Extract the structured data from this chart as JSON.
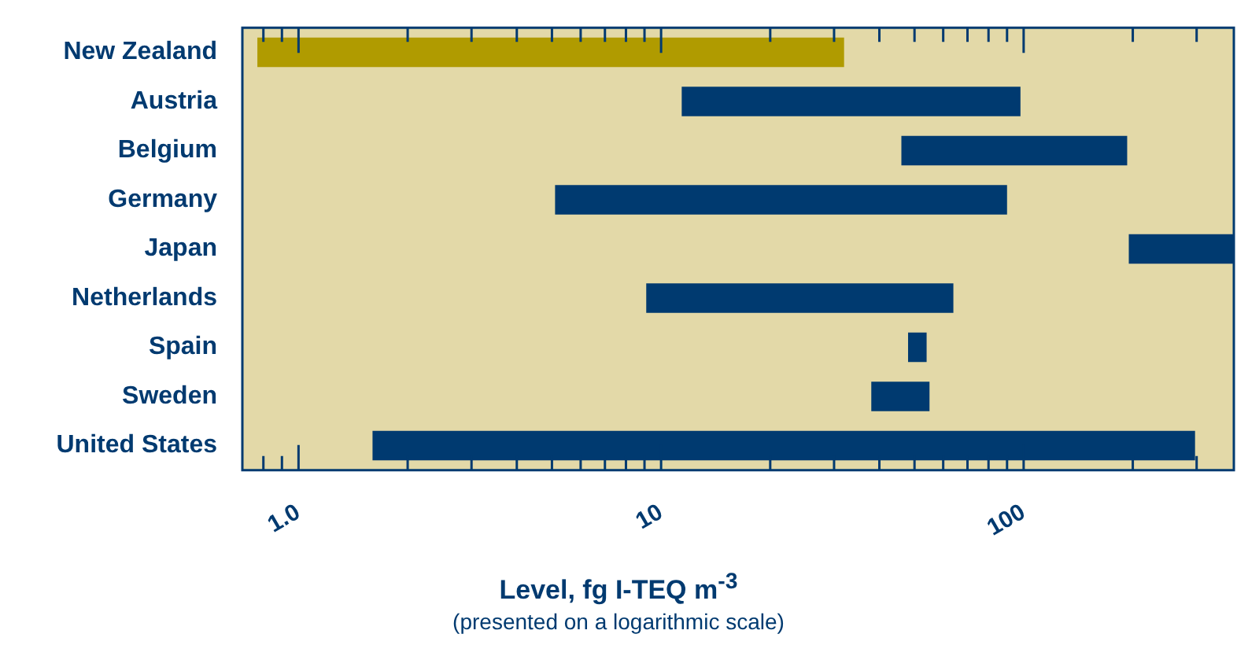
{
  "chart_data": {
    "type": "bar",
    "orientation": "horizontal",
    "log": "x",
    "xlabel": "Level, fg I-TEQ m$^{-3}$",
    "annotations": [
      "(presented on a logarithmic scale)"
    ],
    "categories": [
      "New Zealand",
      "Austria",
      "Belgium",
      "Germany",
      "Japan",
      "Netherlands",
      "Spain",
      "Sweden",
      "United States"
    ],
    "base": [
      0.77,
      11.4,
      46,
      5.1,
      195,
      9.1,
      48,
      38,
      1.6
    ],
    "values": [
      31.2,
      86.6,
      147,
      84.9,
      185,
      54.9,
      6,
      17,
      295.4
    ],
    "colors": [
      "#b09b00",
      "#003a70",
      "#003a70",
      "#003a70",
      "#003a70",
      "#003a70",
      "#003a70",
      "#003a70",
      "#003a70"
    ],
    "xlim": [
      0.71,
      380
    ],
    "xticks": [
      {
        "value": 0.8,
        "label": null
      },
      {
        "value": 0.9,
        "label": null
      },
      {
        "value": 1,
        "label": "1.0"
      },
      {
        "value": 2,
        "label": null
      },
      {
        "value": 3,
        "label": null
      },
      {
        "value": 4,
        "label": null
      },
      {
        "value": 5,
        "label": null
      },
      {
        "value": 6,
        "label": null
      },
      {
        "value": 7,
        "label": null
      },
      {
        "value": 8,
        "label": null
      },
      {
        "value": 9,
        "label": null
      },
      10,
      {
        "value": 20,
        "label": null
      },
      {
        "value": 30,
        "label": null
      },
      {
        "value": 40,
        "label": null
      },
      {
        "value": 50,
        "label": null
      },
      {
        "value": 60,
        "label": null
      },
      {
        "value": 70,
        "label": null
      },
      {
        "value": 80,
        "label": null
      },
      {
        "value": 90,
        "label": null
      },
      100,
      {
        "value": 200,
        "label": null
      },
      {
        "value": 300,
        "label": null
      }
    ]
  }
}
